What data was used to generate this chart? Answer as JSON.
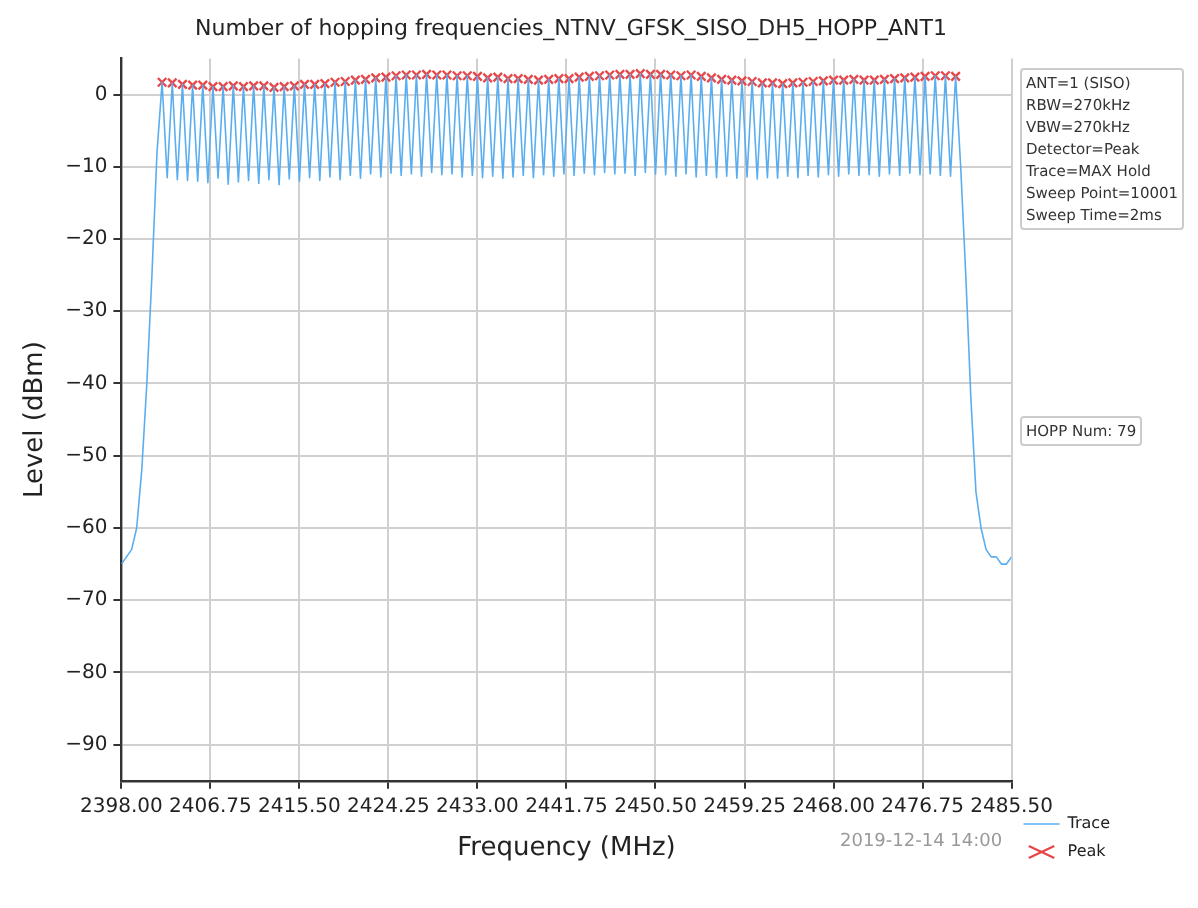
{
  "chart_data": {
    "type": "line",
    "title": "Number of hopping frequencies_NTNV_GFSK_SISO_DH5_HOPP_ANT1",
    "xlabel": "Frequency (MHz)",
    "ylabel": "Level (dBm)",
    "xlim": [
      2398,
      2485.5
    ],
    "xticks": [
      {
        "value": 2398,
        "label": "2398.00"
      },
      {
        "value": 2406.75,
        "label": "2406.75"
      },
      {
        "value": 2415.5,
        "label": "2415.50"
      },
      {
        "value": 2424.25,
        "label": "2424.25"
      },
      {
        "value": 2433,
        "label": "2433.00"
      },
      {
        "value": 2441.75,
        "label": "2441.75"
      },
      {
        "value": 2450.5,
        "label": "2450.50"
      },
      {
        "value": 2459.25,
        "label": "2459.25"
      },
      {
        "value": 2468,
        "label": "2468.00"
      },
      {
        "value": 2476.75,
        "label": "2476.75"
      },
      {
        "value": 2485.5,
        "label": "2485.50"
      }
    ],
    "ylim": [
      -95,
      5
    ],
    "yticks": [
      0,
      -10,
      -20,
      -30,
      -40,
      -50,
      -60,
      -70,
      -80,
      -90
    ],
    "grid": true,
    "legend": "bottom right",
    "series": [
      {
        "name": "Trace",
        "type": "line",
        "color": "#5aaef0",
        "marker": "none",
        "x": [
          2398,
          2398.5,
          2399,
          2399.5,
          2400,
          2400.5,
          2401,
          2401.5,
          2402,
          2402.5,
          2403,
          2403.5,
          2404,
          2404.5,
          2405,
          2405.5,
          2406,
          2406.5,
          2407,
          2407.5,
          2408,
          2408.5,
          2409,
          2409.5,
          2410,
          2410.5,
          2411,
          2411.5,
          2412,
          2412.5,
          2413,
          2413.5,
          2414,
          2414.5,
          2415,
          2415.5,
          2416,
          2416.5,
          2417,
          2417.5,
          2418,
          2418.5,
          2419,
          2419.5,
          2420,
          2420.5,
          2421,
          2421.5,
          2422,
          2422.5,
          2423,
          2423.5,
          2424,
          2424.5,
          2425,
          2425.5,
          2426,
          2426.5,
          2427,
          2427.5,
          2428,
          2428.5,
          2429,
          2429.5,
          2430,
          2430.5,
          2431,
          2431.5,
          2432,
          2432.5,
          2433,
          2433.5,
          2434,
          2434.5,
          2435,
          2435.5,
          2436,
          2436.5,
          2437,
          2437.5,
          2438,
          2438.5,
          2439,
          2439.5,
          2440,
          2440.5,
          2441,
          2441.5,
          2442,
          2442.5,
          2443,
          2443.5,
          2444,
          2444.5,
          2445,
          2445.5,
          2446,
          2446.5,
          2447,
          2447.5,
          2448,
          2448.5,
          2449,
          2449.5,
          2450,
          2450.5,
          2451,
          2451.5,
          2452,
          2452.5,
          2453,
          2453.5,
          2454,
          2454.5,
          2455,
          2455.5,
          2456,
          2456.5,
          2457,
          2457.5,
          2458,
          2458.5,
          2459,
          2459.5,
          2460,
          2460.5,
          2461,
          2461.5,
          2462,
          2462.5,
          2463,
          2463.5,
          2464,
          2464.5,
          2465,
          2465.5,
          2466,
          2466.5,
          2467,
          2467.5,
          2468,
          2468.5,
          2469,
          2469.5,
          2470,
          2470.5,
          2471,
          2471.5,
          2472,
          2472.5,
          2473,
          2473.5,
          2474,
          2474.5,
          2475,
          2475.5,
          2476,
          2476.5,
          2477,
          2477.5,
          2478,
          2478.5,
          2479,
          2479.5,
          2480,
          2480.5,
          2481,
          2481.5,
          2482,
          2482.5,
          2483,
          2483.5,
          2484,
          2484.5,
          2485,
          2485.5
        ],
        "values": [
          -65,
          -64,
          -63,
          -60,
          -52,
          -40,
          -25,
          -8,
          1.7,
          -11.5,
          1.6,
          -11.8,
          1.4,
          -11.9,
          1.3,
          -12.0,
          1.3,
          -12.2,
          1.1,
          -11.6,
          1.1,
          -12.4,
          1.2,
          -12.1,
          1.1,
          -11.9,
          1.2,
          -12.3,
          1.2,
          -11.8,
          1.0,
          -12.5,
          1.1,
          -11.7,
          1.2,
          -12.0,
          1.4,
          -11.5,
          1.4,
          -11.9,
          1.5,
          -11.4,
          1.7,
          -11.8,
          1.8,
          -11.2,
          2.0,
          -11.6,
          2.1,
          -11.0,
          2.3,
          -11.4,
          2.4,
          -10.9,
          2.6,
          -11.2,
          2.7,
          -11.0,
          2.7,
          -11.3,
          2.8,
          -10.8,
          2.7,
          -11.1,
          2.7,
          -11.0,
          2.6,
          -11.4,
          2.6,
          -11.2,
          2.5,
          -11.5,
          2.3,
          -11.3,
          2.4,
          -11.6,
          2.2,
          -11.4,
          2.2,
          -11.2,
          2.1,
          -11.5,
          2.0,
          -11.1,
          2.1,
          -11.3,
          2.2,
          -11.0,
          2.2,
          -11.2,
          2.4,
          -10.9,
          2.5,
          -11.1,
          2.6,
          -10.8,
          2.7,
          -11.0,
          2.8,
          -10.9,
          2.8,
          -11.2,
          2.9,
          -10.8,
          2.8,
          -11.0,
          2.8,
          -11.1,
          2.7,
          -11.3,
          2.6,
          -11.0,
          2.7,
          -11.4,
          2.5,
          -11.2,
          2.3,
          -11.5,
          2.1,
          -11.3,
          2.0,
          -11.6,
          1.9,
          -11.4,
          1.8,
          -11.7,
          1.6,
          -11.5,
          1.6,
          -11.6,
          1.5,
          -11.3,
          1.6,
          -11.5,
          1.7,
          -11.2,
          1.8,
          -11.4,
          1.9,
          -11.1,
          2.0,
          -11.3,
          2.0,
          -11.0,
          2.1,
          -11.2,
          2.0,
          -11.1,
          2.0,
          -11.3,
          2.1,
          -11.0,
          2.2,
          -11.2,
          2.3,
          -10.9,
          2.4,
          -11.1,
          2.5,
          -11.0,
          2.6,
          -11.2,
          2.6,
          -11.3,
          2.5,
          -10,
          -25,
          -42,
          -55,
          -60,
          -63,
          -64,
          -64,
          -65,
          -65,
          -64
        ]
      },
      {
        "name": "Peak",
        "type": "scatter",
        "color": "#e8474a",
        "marker": "cross",
        "x": [
          2402,
          2403,
          2404,
          2405,
          2406,
          2407,
          2408,
          2409,
          2410,
          2411,
          2412,
          2413,
          2414,
          2415,
          2416,
          2417,
          2418,
          2419,
          2420,
          2421,
          2422,
          2423,
          2424,
          2425,
          2426,
          2427,
          2428,
          2429,
          2430,
          2431,
          2432,
          2433,
          2434,
          2435,
          2436,
          2437,
          2438,
          2439,
          2440,
          2441,
          2442,
          2443,
          2444,
          2445,
          2446,
          2447,
          2448,
          2449,
          2450,
          2451,
          2452,
          2453,
          2454,
          2455,
          2456,
          2457,
          2458,
          2459,
          2460,
          2461,
          2462,
          2463,
          2464,
          2465,
          2466,
          2467,
          2468,
          2469,
          2470,
          2471,
          2472,
          2473,
          2474,
          2475,
          2476,
          2477,
          2478,
          2479,
          2480
        ],
        "values": [
          1.7,
          1.6,
          1.4,
          1.3,
          1.3,
          1.1,
          1.1,
          1.2,
          1.1,
          1.2,
          1.2,
          1.0,
          1.1,
          1.2,
          1.4,
          1.4,
          1.5,
          1.7,
          1.8,
          2.0,
          2.1,
          2.3,
          2.4,
          2.6,
          2.7,
          2.7,
          2.8,
          2.7,
          2.7,
          2.6,
          2.6,
          2.5,
          2.3,
          2.4,
          2.2,
          2.2,
          2.1,
          2.0,
          2.1,
          2.2,
          2.2,
          2.4,
          2.5,
          2.6,
          2.7,
          2.8,
          2.8,
          2.9,
          2.8,
          2.8,
          2.7,
          2.6,
          2.7,
          2.5,
          2.3,
          2.1,
          2.0,
          1.9,
          1.8,
          1.6,
          1.6,
          1.5,
          1.6,
          1.7,
          1.8,
          1.9,
          2.0,
          2.0,
          2.1,
          2.0,
          2.0,
          2.1,
          2.2,
          2.3,
          2.4,
          2.5,
          2.6,
          2.6,
          2.5
        ]
      }
    ],
    "annotations": [
      "ANT=1 (SISO)",
      "RBW=270kHz",
      "VBW=270kHz",
      "Detector=Peak",
      "Trace=MAX Hold",
      "Sweep Point=10001",
      "Sweep Time=2ms",
      "HOPP Num: 79",
      "2019-12-14 14:00"
    ]
  }
}
